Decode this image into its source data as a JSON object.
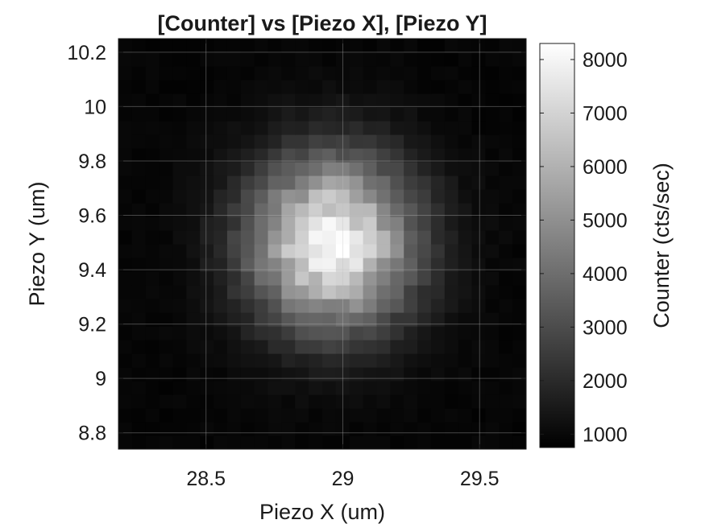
{
  "chart_data": {
    "type": "heatmap",
    "title": "[Counter] vs [Piezo X], [Piezo Y]",
    "xlabel": "Piezo X (um)",
    "ylabel": "Piezo Y (um)",
    "colorbar_label": "Counter (cts/sec)",
    "xlim": [
      28.18,
      29.67
    ],
    "ylim": [
      8.74,
      10.25
    ],
    "x_ticks": [
      28.5,
      29,
      29.5
    ],
    "x_tick_labels": [
      "28.5",
      "29",
      "29.5"
    ],
    "y_ticks": [
      8.8,
      9,
      9.2,
      9.4,
      9.6,
      9.8,
      10,
      10.2
    ],
    "y_tick_labels": [
      "8.8",
      "9",
      "9.2",
      "9.4",
      "9.6",
      "9.8",
      "10",
      "10.2"
    ],
    "colorbar_range": [
      750,
      8300
    ],
    "colorbar_ticks": [
      1000,
      2000,
      3000,
      4000,
      5000,
      6000,
      7000,
      8000
    ],
    "colorbar_tick_labels": [
      "1000",
      "2000",
      "3000",
      "4000",
      "5000",
      "6000",
      "7000",
      "8000"
    ],
    "colormap": "gray",
    "grid": true,
    "peak": {
      "x": 28.96,
      "y": 9.5,
      "value": 8000
    },
    "background_level": 900,
    "spot_sigma_x": 0.21,
    "spot_sigma_y": 0.22,
    "pixel_grid": [
      30,
      30
    ]
  }
}
